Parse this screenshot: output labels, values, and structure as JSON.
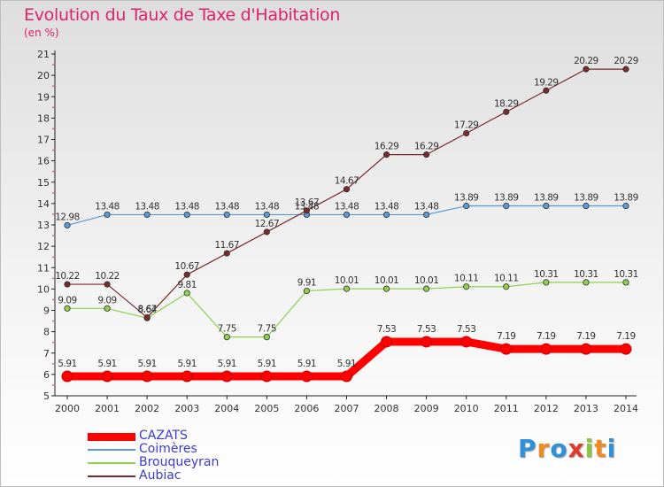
{
  "chart_data": {
    "type": "line",
    "title": "Evolution du Taux de Taxe d'Habitation",
    "unit_label": "(en %)",
    "categories": [
      "2000",
      "2001",
      "2002",
      "2003",
      "2004",
      "2005",
      "2006",
      "2007",
      "2008",
      "2009",
      "2010",
      "2011",
      "2012",
      "2013",
      "2014"
    ],
    "ylim": [
      5,
      21
    ],
    "yticks": [
      5,
      6,
      7,
      8,
      9,
      10,
      11,
      12,
      13,
      14,
      15,
      16,
      17,
      18,
      19,
      20,
      21
    ],
    "grid": false,
    "legend_position": "bottom-left",
    "series": [
      {
        "name": "CAZATS",
        "color": "#ff0000",
        "values": [
          5.91,
          5.91,
          5.91,
          5.91,
          5.91,
          5.91,
          5.91,
          5.91,
          7.53,
          7.53,
          7.53,
          7.19,
          7.19,
          7.19,
          7.19
        ],
        "labels": [
          "5.91",
          "5.91",
          "5.91",
          "5.91",
          "5.91",
          "5.91",
          "5.91",
          "5.91",
          "7.53",
          "7.53",
          "7.53",
          "7.19",
          "7.19",
          "7.19",
          "7.19"
        ]
      },
      {
        "name": "Coimères",
        "color": "#5b9bd5",
        "values": [
          12.98,
          13.48,
          13.48,
          13.48,
          13.48,
          13.48,
          13.48,
          13.48,
          13.48,
          13.48,
          13.89,
          13.89,
          13.89,
          13.89,
          13.89
        ],
        "labels": [
          "12.98",
          "13.48",
          "13.48",
          "13.48",
          "13.48",
          "13.48",
          "13.48",
          "13.48",
          "13.48",
          "13.48",
          "13.89",
          "13.89",
          "13.89",
          "13.89",
          "13.89"
        ]
      },
      {
        "name": "Brouqueyran",
        "color": "#8fd14f",
        "values": [
          9.09,
          9.09,
          8.64,
          9.81,
          7.75,
          7.75,
          9.91,
          10.01,
          10.01,
          10.01,
          10.11,
          10.11,
          10.31,
          10.31,
          10.31
        ],
        "labels": [
          "9.09",
          "9.09",
          "8.64",
          "9.81",
          "7.75",
          "7.75",
          "9.91",
          "10.01",
          "10.01",
          "10.01",
          "10.11",
          "10.11",
          "10.31",
          "10.31",
          "10.31"
        ]
      },
      {
        "name": "Aubiac",
        "color": "#7b2a2a",
        "values": [
          10.22,
          10.22,
          8.67,
          10.67,
          11.67,
          12.67,
          13.67,
          14.67,
          16.29,
          16.29,
          17.29,
          18.29,
          19.29,
          20.29,
          20.29
        ],
        "labels": [
          "10.22",
          "10.22",
          "8.67",
          "10.67",
          "11.67",
          "12.67",
          "13.67",
          "14.67",
          "16.29",
          "16.29",
          "17.29",
          "18.29",
          "19.29",
          "20.29",
          "20.29"
        ]
      }
    ]
  },
  "brand": {
    "letters": [
      "P",
      "r",
      "o",
      "x",
      "i",
      "t",
      "i"
    ],
    "colors": [
      "#2f8fd8",
      "#f28a1e",
      "#2f8fd8",
      "#e23a2a",
      "#8cc63f",
      "#f28a1e",
      "#2f8fd8"
    ]
  }
}
